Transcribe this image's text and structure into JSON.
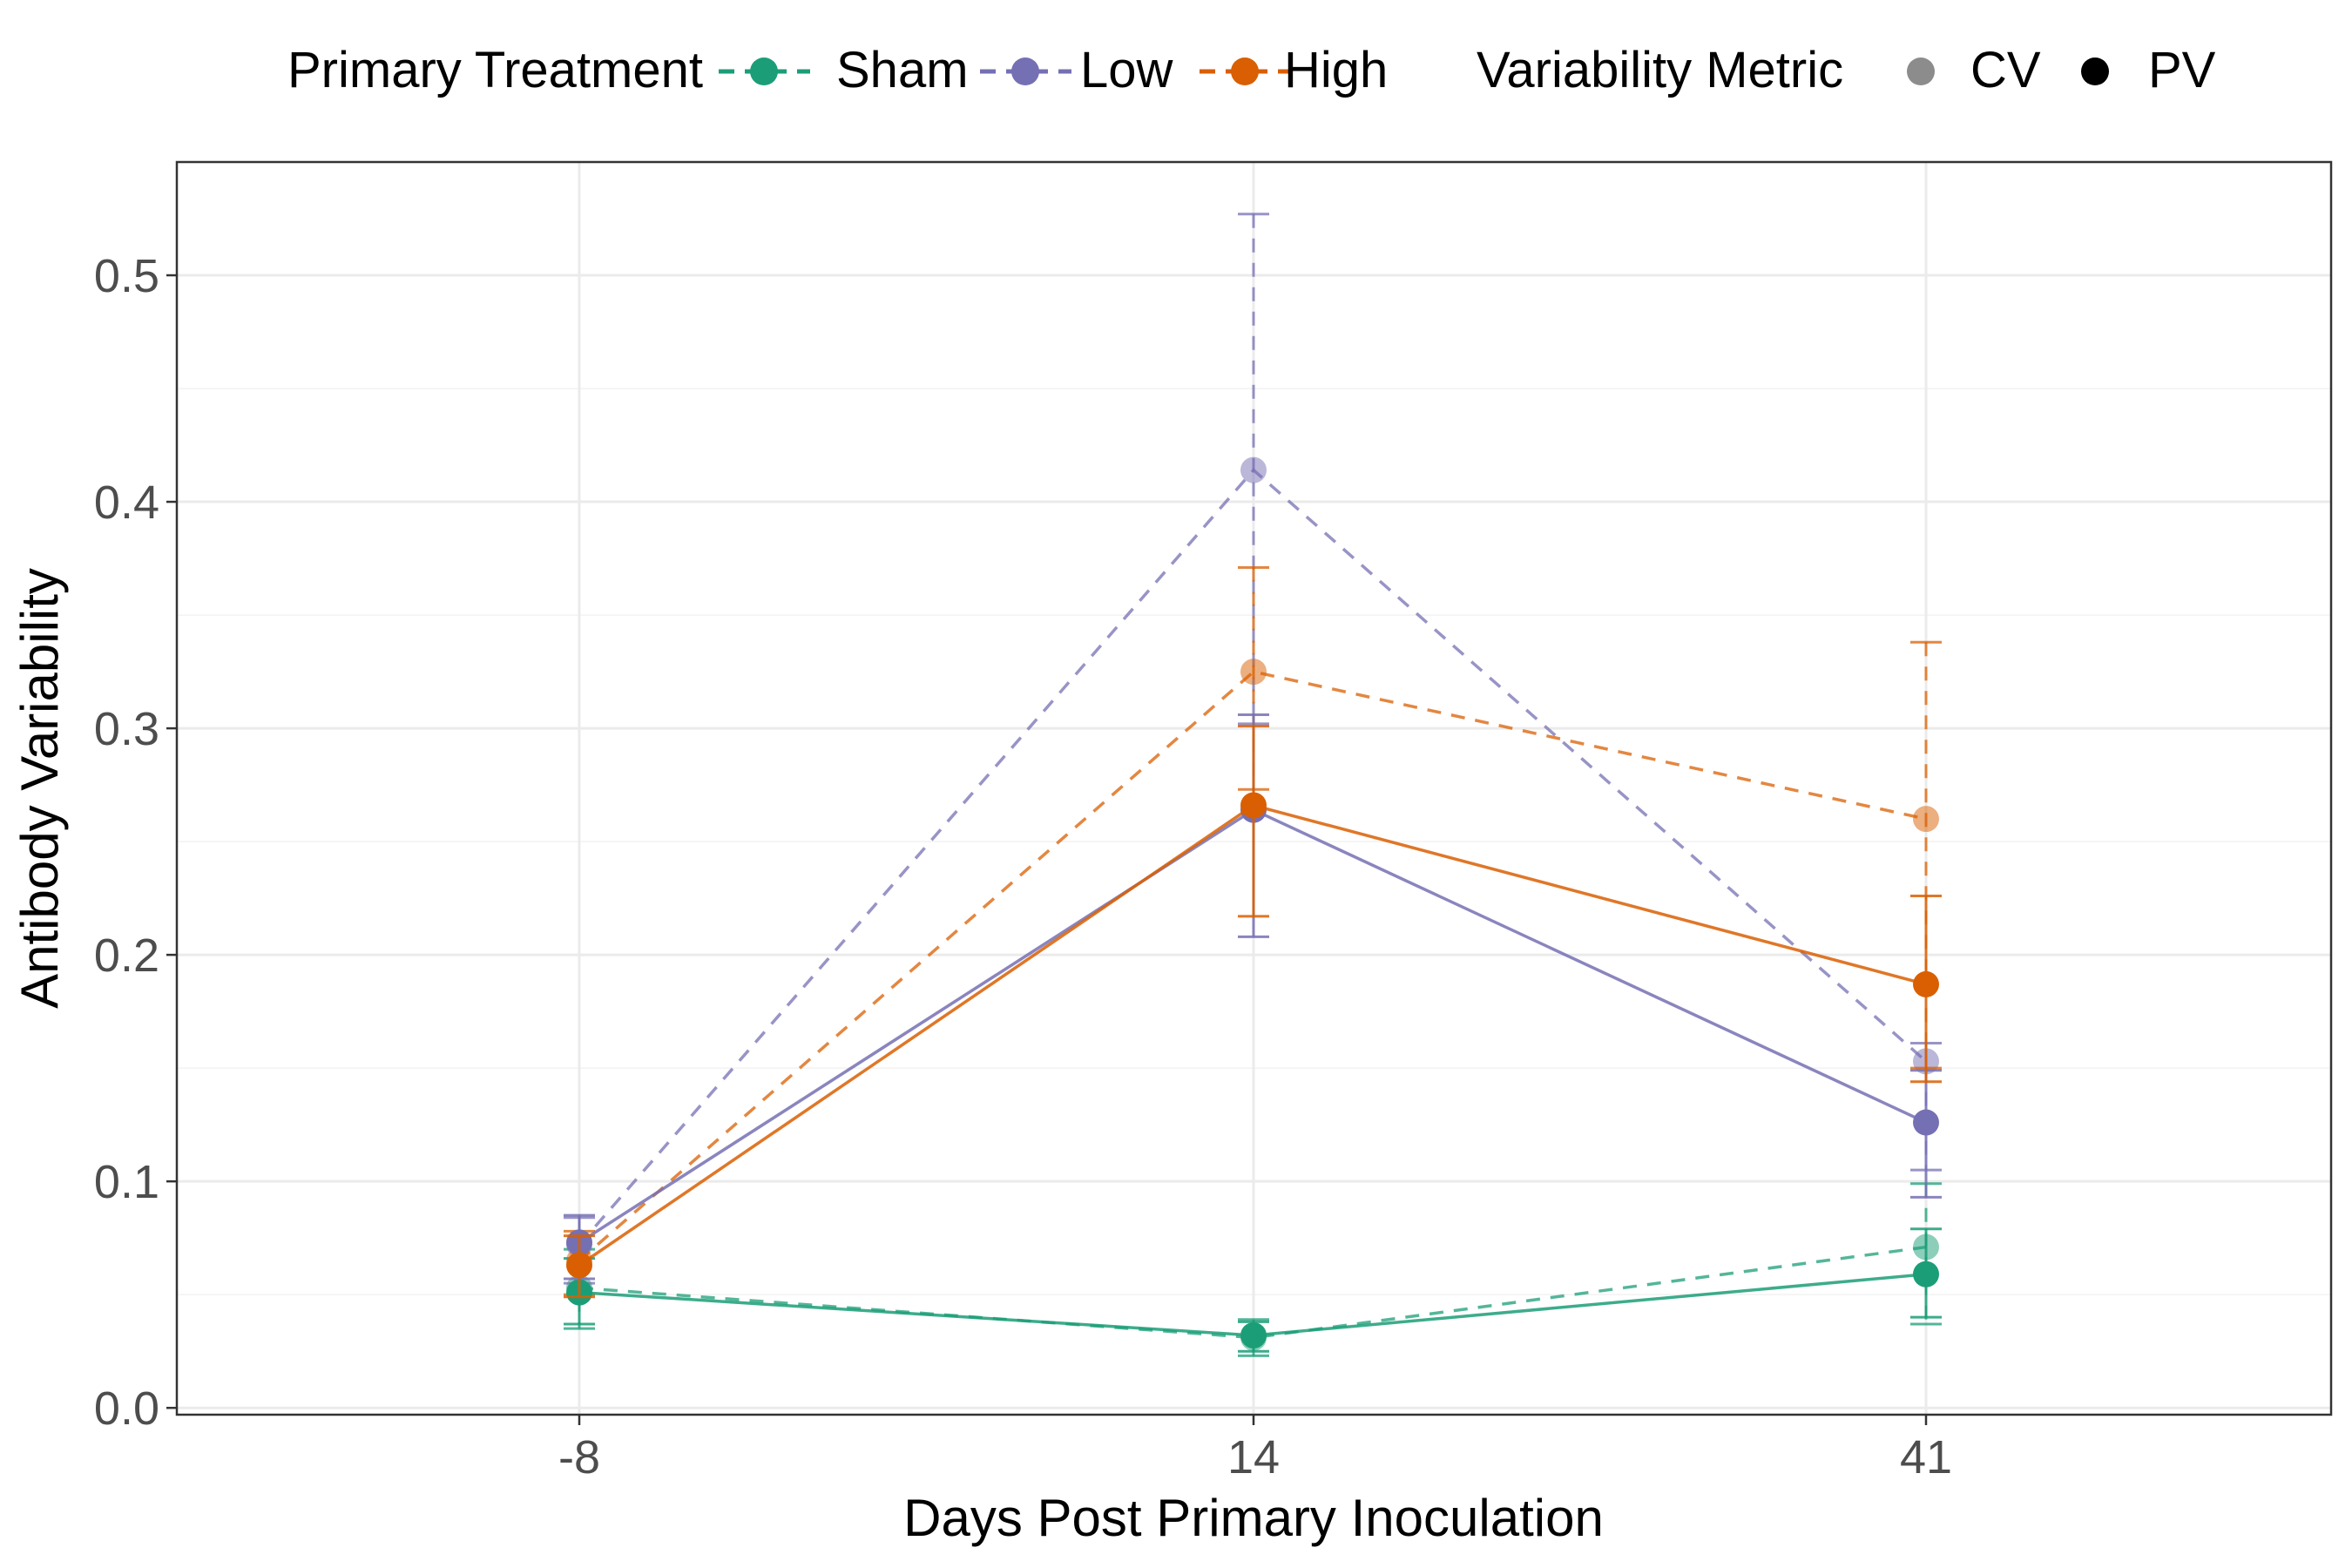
{
  "chart_data": {
    "type": "line",
    "xlabel": "Days Post Primary Inoculation",
    "ylabel": "Antibody Variability",
    "x_categories": [
      "-8",
      "14",
      "41"
    ],
    "ylim": [
      -0.003,
      0.55
    ],
    "yticks": [
      0.0,
      0.1,
      0.2,
      0.3,
      0.4,
      0.5
    ],
    "ytick_labels": [
      "0.0",
      "0.1",
      "0.2",
      "0.3",
      "0.4",
      "0.5"
    ],
    "grid": true,
    "legend_position": "top",
    "legend": {
      "treatment_title": "Primary Treatment",
      "metric_title": "Variability Metric",
      "treatments": [
        {
          "name": "Sham",
          "color": "#1b9e77"
        },
        {
          "name": "Low",
          "color": "#7570b3"
        },
        {
          "name": "High",
          "color": "#d95f02"
        }
      ],
      "metrics": [
        {
          "name": "CV",
          "style": "dashed, semi-transparent"
        },
        {
          "name": "PV",
          "style": "solid, opaque"
        }
      ]
    },
    "series": [
      {
        "treatment": "Sham",
        "metric": "PV",
        "color": "#1b9e77",
        "dashed": false,
        "values": [
          0.051,
          0.032,
          0.059
        ],
        "lower": [
          0.037,
          0.025,
          0.04
        ],
        "upper": [
          0.066,
          0.038,
          0.079
        ]
      },
      {
        "treatment": "Sham",
        "metric": "CV",
        "color": "#1b9e77",
        "dashed": true,
        "values": [
          0.053,
          0.031,
          0.071
        ],
        "lower": [
          0.035,
          0.023,
          0.037
        ],
        "upper": [
          0.07,
          0.039,
          0.099
        ]
      },
      {
        "treatment": "Low",
        "metric": "PV",
        "color": "#7570b3",
        "dashed": false,
        "values": [
          0.073,
          0.264,
          0.126
        ],
        "lower": [
          0.057,
          0.208,
          0.093
        ],
        "upper": [
          0.085,
          0.306,
          0.149
        ]
      },
      {
        "treatment": "Low",
        "metric": "CV",
        "color": "#7570b3",
        "dashed": true,
        "values": [
          0.072,
          0.414,
          0.153
        ],
        "lower": [
          0.055,
          0.302,
          0.105
        ],
        "upper": [
          0.084,
          0.527,
          0.161
        ]
      },
      {
        "treatment": "High",
        "metric": "PV",
        "color": "#d95f02",
        "dashed": false,
        "values": [
          0.063,
          0.266,
          0.187
        ],
        "lower": [
          0.049,
          0.217,
          0.144
        ],
        "upper": [
          0.076,
          0.301,
          0.226
        ]
      },
      {
        "treatment": "High",
        "metric": "CV",
        "color": "#d95f02",
        "dashed": true,
        "values": [
          0.065,
          0.325,
          0.26
        ],
        "lower": [
          0.05,
          0.273,
          0.15
        ],
        "upper": [
          0.078,
          0.371,
          0.338
        ]
      }
    ]
  }
}
